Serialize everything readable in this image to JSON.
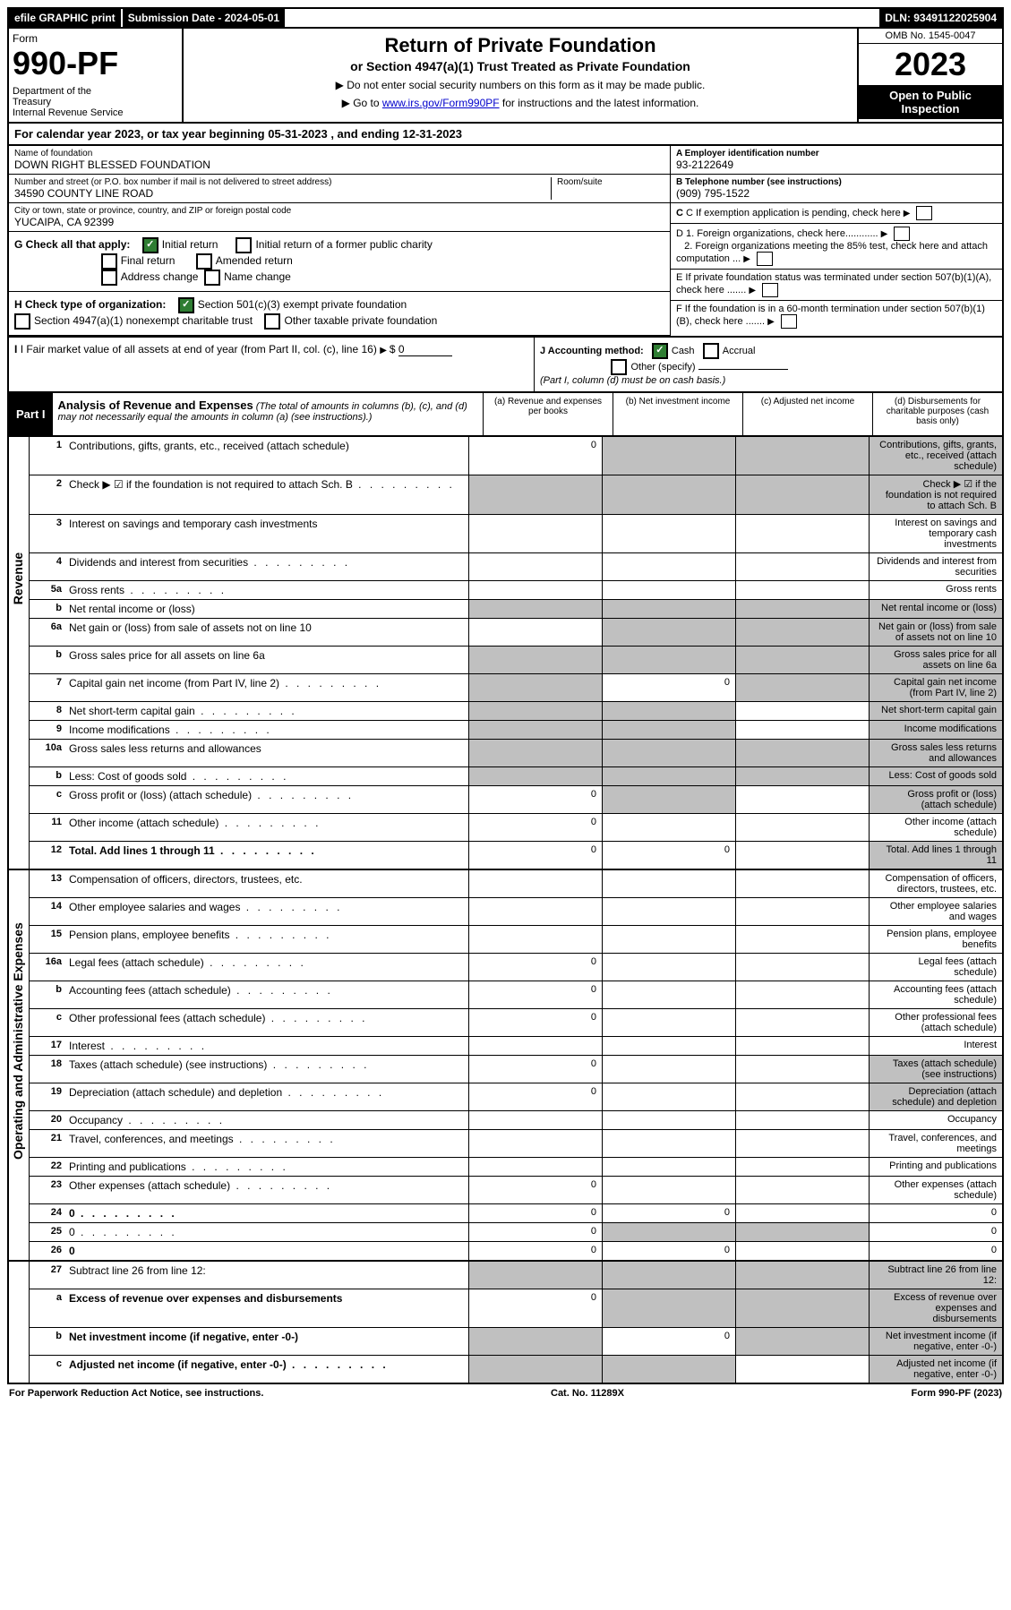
{
  "top": {
    "efile": "efile GRAPHIC print",
    "sub_date": "Submission Date - 2024-05-01",
    "dln": "DLN: 93491122025904"
  },
  "header": {
    "form_word": "Form",
    "form_num": "990-PF",
    "dept": "Department of the Treasury\nInternal Revenue Service",
    "title": "Return of Private Foundation",
    "subtitle": "or Section 4947(a)(1) Trust Treated as Private Foundation",
    "note1": "▶ Do not enter social security numbers on this form as it may be made public.",
    "note2_pre": "▶ Go to ",
    "note2_link": "www.irs.gov/Form990PF",
    "note2_post": " for instructions and the latest information.",
    "omb": "OMB No. 1545-0047",
    "year": "2023",
    "open": "Open to Public Inspection"
  },
  "cal": "For calendar year 2023, or tax year beginning 05-31-2023            , and ending 12-31-2023",
  "id": {
    "name_label": "Name of foundation",
    "name": "DOWN RIGHT BLESSED FOUNDATION",
    "addr_label": "Number and street (or P.O. box number if mail is not delivered to street address)",
    "addr": "34590 COUNTY LINE ROAD",
    "room_label": "Room/suite",
    "city_label": "City or town, state or province, country, and ZIP or foreign postal code",
    "city": "YUCAIPA, CA  92399",
    "a_label": "A Employer identification number",
    "a_val": "93-2122649",
    "b_label": "B Telephone number (see instructions)",
    "b_val": "(909) 795-1522",
    "c_label": "C If exemption application is pending, check here",
    "d1": "D 1. Foreign organizations, check here............",
    "d2": "2. Foreign organizations meeting the 85% test, check here and attach computation ...",
    "e": "E  If private foundation status was terminated under section 507(b)(1)(A), check here .......",
    "f": "F  If the foundation is in a 60-month termination under section 507(b)(1)(B), check here .......",
    "g_label": "G Check all that apply:",
    "g1": "Initial return",
    "g2": "Initial return of a former public charity",
    "g3": "Final return",
    "g4": "Amended return",
    "g5": "Address change",
    "g6": "Name change",
    "h_label": "H Check type of organization:",
    "h1": "Section 501(c)(3) exempt private foundation",
    "h2": "Section 4947(a)(1) nonexempt charitable trust",
    "h3": "Other taxable private foundation",
    "i_label": "I Fair market value of all assets at end of year (from Part II, col. (c), line 16)",
    "i_val": "0",
    "j_label": "J Accounting method:",
    "j1": "Cash",
    "j2": "Accrual",
    "j3": "Other (specify)",
    "j_note": "(Part I, column (d) must be on cash basis.)"
  },
  "part1": {
    "tag": "Part I",
    "title": "Analysis of Revenue and Expenses",
    "title_note": " (The total of amounts in columns (b), (c), and (d) may not necessarily equal the amounts in column (a) (see instructions).)",
    "col_a": "(a)  Revenue and expenses per books",
    "col_b": "(b)  Net investment income",
    "col_c": "(c)  Adjusted net income",
    "col_d": "(d)  Disbursements for charitable purposes (cash basis only)"
  },
  "sides": {
    "rev": "Revenue",
    "exp": "Operating and Administrative Expenses"
  },
  "lines": [
    {
      "n": "1",
      "d": "Contributions, gifts, grants, etc., received (attach schedule)",
      "a": "0",
      "shade": [
        "b",
        "c",
        "d"
      ]
    },
    {
      "n": "2",
      "d": "Check ▶ ☑ if the foundation is not required to attach Sch. B",
      "shade": [
        "a",
        "b",
        "c",
        "d"
      ],
      "dots": true
    },
    {
      "n": "3",
      "d": "Interest on savings and temporary cash investments"
    },
    {
      "n": "4",
      "d": "Dividends and interest from securities",
      "dots": true
    },
    {
      "n": "5a",
      "d": "Gross rents",
      "dots": true
    },
    {
      "n": "b",
      "d": "Net rental income or (loss)",
      "shade": [
        "a",
        "b",
        "c",
        "d"
      ],
      "hasInline": true
    },
    {
      "n": "6a",
      "d": "Net gain or (loss) from sale of assets not on line 10",
      "shade": [
        "b",
        "c",
        "d"
      ]
    },
    {
      "n": "b",
      "d": "Gross sales price for all assets on line 6a",
      "shade": [
        "a",
        "b",
        "c",
        "d"
      ],
      "hasInline": true
    },
    {
      "n": "7",
      "d": "Capital gain net income (from Part IV, line 2)",
      "dots": true,
      "shade": [
        "a",
        "c",
        "d"
      ],
      "b": "0"
    },
    {
      "n": "8",
      "d": "Net short-term capital gain",
      "dots": true,
      "shade": [
        "a",
        "b",
        "d"
      ]
    },
    {
      "n": "9",
      "d": "Income modifications",
      "dots": true,
      "shade": [
        "a",
        "b",
        "d"
      ]
    },
    {
      "n": "10a",
      "d": "Gross sales less returns and allowances",
      "shade": [
        "a",
        "b",
        "c",
        "d"
      ],
      "hasInline": true
    },
    {
      "n": "b",
      "d": "Less: Cost of goods sold",
      "dots": true,
      "shade": [
        "a",
        "b",
        "c",
        "d"
      ],
      "hasInline": true
    },
    {
      "n": "c",
      "d": "Gross profit or (loss) (attach schedule)",
      "dots": true,
      "a": "0",
      "shade": [
        "b",
        "d"
      ]
    },
    {
      "n": "11",
      "d": "Other income (attach schedule)",
      "dots": true,
      "a": "0"
    },
    {
      "n": "12",
      "d": "Total. Add lines 1 through 11",
      "dots": true,
      "bold": true,
      "a": "0",
      "b": "0",
      "shade": [
        "d"
      ]
    }
  ],
  "exp_lines": [
    {
      "n": "13",
      "d": "Compensation of officers, directors, trustees, etc."
    },
    {
      "n": "14",
      "d": "Other employee salaries and wages",
      "dots": true
    },
    {
      "n": "15",
      "d": "Pension plans, employee benefits",
      "dots": true
    },
    {
      "n": "16a",
      "d": "Legal fees (attach schedule)",
      "dots": true,
      "a": "0"
    },
    {
      "n": "b",
      "d": "Accounting fees (attach schedule)",
      "dots": true,
      "a": "0"
    },
    {
      "n": "c",
      "d": "Other professional fees (attach schedule)",
      "dots": true,
      "a": "0"
    },
    {
      "n": "17",
      "d": "Interest",
      "dots": true
    },
    {
      "n": "18",
      "d": "Taxes (attach schedule) (see instructions)",
      "dots": true,
      "a": "0",
      "shade": [
        "d"
      ]
    },
    {
      "n": "19",
      "d": "Depreciation (attach schedule) and depletion",
      "dots": true,
      "a": "0",
      "shade": [
        "d"
      ]
    },
    {
      "n": "20",
      "d": "Occupancy",
      "dots": true
    },
    {
      "n": "21",
      "d": "Travel, conferences, and meetings",
      "dots": true
    },
    {
      "n": "22",
      "d": "Printing and publications",
      "dots": true
    },
    {
      "n": "23",
      "d": "Other expenses (attach schedule)",
      "dots": true,
      "a": "0"
    },
    {
      "n": "24",
      "d": "0",
      "dots": true,
      "bold": true,
      "a": "0",
      "b": "0"
    },
    {
      "n": "25",
      "d": "0",
      "dots": true,
      "a": "0",
      "shade": [
        "b",
        "c"
      ]
    },
    {
      "n": "26",
      "d": "0",
      "bold": true,
      "a": "0",
      "b": "0"
    }
  ],
  "final_lines": [
    {
      "n": "27",
      "d": "Subtract line 26 from line 12:",
      "shade": [
        "a",
        "b",
        "c",
        "d"
      ]
    },
    {
      "n": "a",
      "d": "Excess of revenue over expenses and disbursements",
      "bold": true,
      "a": "0",
      "shade": [
        "b",
        "c",
        "d"
      ]
    },
    {
      "n": "b",
      "d": "Net investment income (if negative, enter -0-)",
      "bold": true,
      "shade": [
        "a",
        "c",
        "d"
      ],
      "b": "0"
    },
    {
      "n": "c",
      "d": "Adjusted net income (if negative, enter -0-)",
      "dots": true,
      "bold": true,
      "shade": [
        "a",
        "b",
        "d"
      ]
    }
  ],
  "footer": {
    "left": "For Paperwork Reduction Act Notice, see instructions.",
    "mid": "Cat. No. 11289X",
    "right": "Form 990-PF (2023)"
  }
}
